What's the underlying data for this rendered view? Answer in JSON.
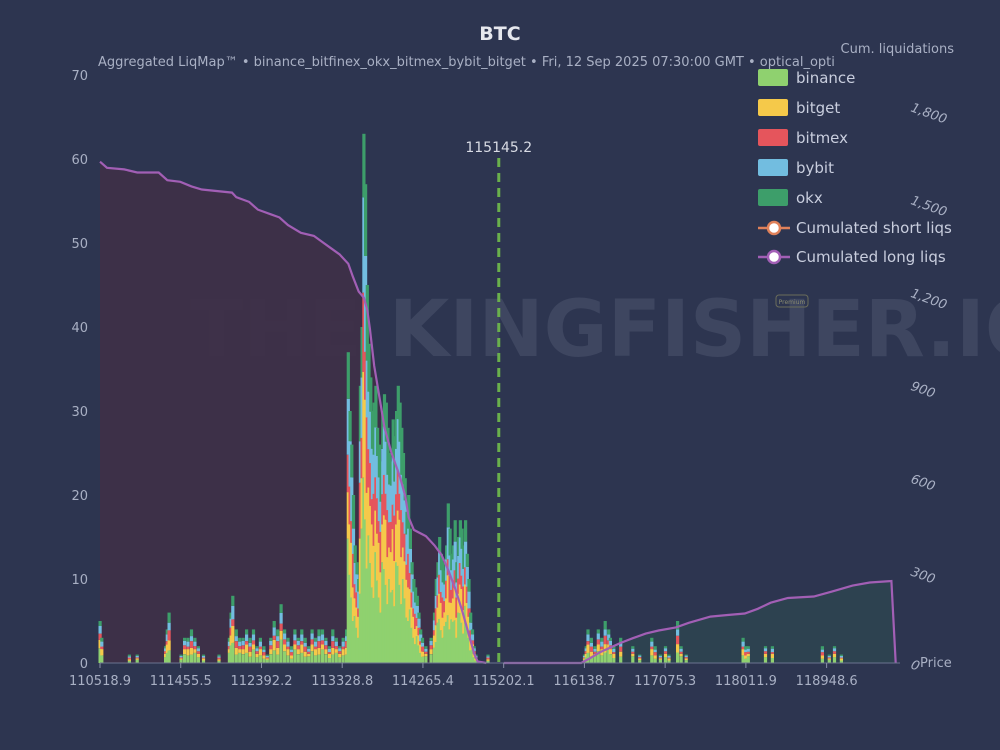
{
  "chart_data": {
    "type": "bar",
    "title": "BTC",
    "subtitle": "Aggregated LiqMap™  •  binance_bitfinex_okx_bitmex_bybit_bitget  •  Fri, 12 Sep 2025 07:30:00 GMT  •  optical_opti",
    "xlabel": "Price",
    "y2label": "Cum. liquidations",
    "xlim": [
      110518.9,
      119800
    ],
    "ylim": [
      0,
      70
    ],
    "y2lim": [
      0,
      1900
    ],
    "x_ticks": [
      "110518.9",
      "111455.5",
      "112392.2",
      "113328.8",
      "114265.4",
      "115202.1",
      "116138.7",
      "117075.3",
      "118011.9",
      "118948.6"
    ],
    "x_tick_values": [
      110518.9,
      111455.5,
      112392.2,
      113328.8,
      114265.4,
      115202.1,
      116138.7,
      117075.3,
      118011.9,
      118948.6
    ],
    "y_ticks": [
      0,
      10,
      20,
      30,
      40,
      50,
      60,
      70
    ],
    "y2_ticks": [
      0,
      300,
      600,
      900,
      1200,
      1500,
      1800
    ],
    "y2_tick_labels": [
      "0",
      "300",
      "600",
      "900",
      "1,200",
      "1,500",
      "1,800"
    ],
    "current_price": 115145.2,
    "current_price_label": "115145.2",
    "series": [
      {
        "name": "binance",
        "color": "#8fd16f"
      },
      {
        "name": "bitget",
        "color": "#f5c94a"
      },
      {
        "name": "bitmex",
        "color": "#e5555c"
      },
      {
        "name": "bybit",
        "color": "#72bde0"
      },
      {
        "name": "okx",
        "color": "#3d9e6a"
      }
    ],
    "bars": [
      [
        110520,
        5
      ],
      [
        110540,
        3
      ],
      [
        110860,
        1
      ],
      [
        110950,
        1
      ],
      [
        111280,
        2
      ],
      [
        111300,
        4
      ],
      [
        111320,
        6
      ],
      [
        111460,
        1
      ],
      [
        111500,
        3
      ],
      [
        111540,
        3
      ],
      [
        111580,
        4
      ],
      [
        111620,
        3
      ],
      [
        111660,
        2
      ],
      [
        111720,
        1
      ],
      [
        111900,
        1
      ],
      [
        112020,
        3
      ],
      [
        112040,
        6
      ],
      [
        112060,
        8
      ],
      [
        112100,
        4
      ],
      [
        112140,
        3
      ],
      [
        112180,
        3
      ],
      [
        112220,
        4
      ],
      [
        112260,
        3
      ],
      [
        112300,
        4
      ],
      [
        112340,
        2
      ],
      [
        112380,
        3
      ],
      [
        112420,
        2
      ],
      [
        112460,
        1
      ],
      [
        112500,
        3
      ],
      [
        112540,
        5
      ],
      [
        112580,
        4
      ],
      [
        112620,
        7
      ],
      [
        112660,
        4
      ],
      [
        112700,
        3
      ],
      [
        112740,
        2
      ],
      [
        112780,
        4
      ],
      [
        112820,
        3
      ],
      [
        112860,
        4
      ],
      [
        112900,
        3
      ],
      [
        112940,
        2
      ],
      [
        112980,
        4
      ],
      [
        113020,
        3
      ],
      [
        113060,
        4
      ],
      [
        113100,
        4
      ],
      [
        113140,
        3
      ],
      [
        113180,
        2
      ],
      [
        113220,
        4
      ],
      [
        113260,
        3
      ],
      [
        113300,
        2
      ],
      [
        113340,
        3
      ],
      [
        113380,
        4
      ],
      [
        113400,
        37
      ],
      [
        113420,
        30
      ],
      [
        113440,
        26
      ],
      [
        113460,
        20
      ],
      [
        113480,
        14
      ],
      [
        113500,
        12
      ],
      [
        113520,
        10
      ],
      [
        113540,
        33
      ],
      [
        113560,
        40
      ],
      [
        113580,
        63
      ],
      [
        113600,
        57
      ],
      [
        113620,
        45
      ],
      [
        113640,
        38
      ],
      [
        113660,
        34
      ],
      [
        113680,
        30
      ],
      [
        113700,
        31
      ],
      [
        113720,
        33
      ],
      [
        113740,
        28
      ],
      [
        113760,
        26
      ],
      [
        113780,
        24
      ],
      [
        113800,
        30
      ],
      [
        113820,
        32
      ],
      [
        113840,
        31
      ],
      [
        113860,
        28
      ],
      [
        113880,
        25
      ],
      [
        113900,
        24
      ],
      [
        113920,
        29
      ],
      [
        113940,
        27
      ],
      [
        113960,
        30
      ],
      [
        113980,
        33
      ],
      [
        114000,
        31
      ],
      [
        114020,
        28
      ],
      [
        114040,
        25
      ],
      [
        114060,
        22
      ],
      [
        114080,
        18
      ],
      [
        114100,
        20
      ],
      [
        114120,
        16
      ],
      [
        114140,
        12
      ],
      [
        114160,
        10
      ],
      [
        114180,
        9
      ],
      [
        114200,
        8
      ],
      [
        114220,
        6
      ],
      [
        114240,
        4
      ],
      [
        114260,
        3
      ],
      [
        114300,
        2
      ],
      [
        114360,
        3
      ],
      [
        114400,
        6
      ],
      [
        114420,
        10
      ],
      [
        114440,
        12
      ],
      [
        114460,
        15
      ],
      [
        114480,
        13
      ],
      [
        114500,
        12
      ],
      [
        114520,
        11
      ],
      [
        114540,
        14
      ],
      [
        114560,
        19
      ],
      [
        114580,
        16
      ],
      [
        114600,
        13
      ],
      [
        114620,
        14
      ],
      [
        114640,
        17
      ],
      [
        114660,
        12
      ],
      [
        114680,
        15
      ],
      [
        114700,
        17
      ],
      [
        114720,
        16
      ],
      [
        114740,
        14
      ],
      [
        114760,
        17
      ],
      [
        114780,
        13
      ],
      [
        114800,
        10
      ],
      [
        114820,
        6
      ],
      [
        114840,
        4
      ],
      [
        114860,
        2
      ],
      [
        114880,
        1
      ],
      [
        115020,
        1
      ],
      [
        116140,
        1
      ],
      [
        116160,
        2
      ],
      [
        116180,
        4
      ],
      [
        116220,
        3
      ],
      [
        116260,
        2
      ],
      [
        116300,
        4
      ],
      [
        116340,
        3
      ],
      [
        116380,
        5
      ],
      [
        116420,
        4
      ],
      [
        116440,
        3
      ],
      [
        116480,
        2
      ],
      [
        116560,
        3
      ],
      [
        116700,
        2
      ],
      [
        116780,
        1
      ],
      [
        116920,
        3
      ],
      [
        116960,
        2
      ],
      [
        117020,
        1
      ],
      [
        117080,
        2
      ],
      [
        117120,
        1
      ],
      [
        117220,
        5
      ],
      [
        117260,
        2
      ],
      [
        117320,
        1
      ],
      [
        117980,
        3
      ],
      [
        118010,
        2
      ],
      [
        118040,
        2
      ],
      [
        118240,
        2
      ],
      [
        118320,
        2
      ],
      [
        118900,
        2
      ],
      [
        118980,
        1
      ],
      [
        119040,
        2
      ],
      [
        119120,
        1
      ]
    ],
    "cumulative_long": [
      [
        110518.9,
        1620
      ],
      [
        110600,
        1600
      ],
      [
        110800,
        1595
      ],
      [
        110950,
        1585
      ],
      [
        111200,
        1585
      ],
      [
        111300,
        1560
      ],
      [
        111450,
        1555
      ],
      [
        111580,
        1540
      ],
      [
        111700,
        1530
      ],
      [
        112050,
        1520
      ],
      [
        112100,
        1505
      ],
      [
        112250,
        1490
      ],
      [
        112350,
        1465
      ],
      [
        112500,
        1450
      ],
      [
        112600,
        1440
      ],
      [
        112700,
        1415
      ],
      [
        112850,
        1390
      ],
      [
        113000,
        1380
      ],
      [
        113100,
        1360
      ],
      [
        113200,
        1340
      ],
      [
        113300,
        1320
      ],
      [
        113400,
        1290
      ],
      [
        113450,
        1250
      ],
      [
        113520,
        1200
      ],
      [
        113580,
        1180
      ],
      [
        113620,
        1140
      ],
      [
        113650,
        1080
      ],
      [
        113700,
        960
      ],
      [
        113760,
        860
      ],
      [
        113820,
        760
      ],
      [
        113900,
        680
      ],
      [
        114000,
        600
      ],
      [
        114060,
        540
      ],
      [
        114100,
        470
      ],
      [
        114160,
        430
      ],
      [
        114300,
        410
      ],
      [
        114400,
        380
      ],
      [
        114480,
        350
      ],
      [
        114560,
        300
      ],
      [
        114640,
        240
      ],
      [
        114720,
        170
      ],
      [
        114800,
        90
      ],
      [
        114860,
        30
      ],
      [
        114900,
        5
      ],
      [
        115000,
        0
      ]
    ],
    "cumulative_short": [
      [
        115202,
        0
      ],
      [
        116100,
        0
      ],
      [
        116200,
        15
      ],
      [
        116320,
        35
      ],
      [
        116440,
        50
      ],
      [
        116560,
        65
      ],
      [
        116700,
        80
      ],
      [
        116850,
        95
      ],
      [
        117000,
        105
      ],
      [
        117200,
        115
      ],
      [
        117350,
        130
      ],
      [
        117600,
        150
      ],
      [
        117800,
        155
      ],
      [
        118000,
        160
      ],
      [
        118150,
        175
      ],
      [
        118300,
        195
      ],
      [
        118500,
        210
      ],
      [
        118800,
        215
      ],
      [
        119000,
        230
      ],
      [
        119250,
        250
      ],
      [
        119450,
        260
      ],
      [
        119700,
        265
      ],
      [
        119750,
        0
      ]
    ],
    "legend_position": "top-right",
    "legend_extra": [
      {
        "name": "Cumulated short liqs",
        "color": "#e0815a"
      },
      {
        "name": "Cumulated long liqs",
        "color": "#a25fb5"
      }
    ],
    "watermark": "THE KINGFISHER.IO",
    "badge": "Premium",
    "grid": false
  }
}
